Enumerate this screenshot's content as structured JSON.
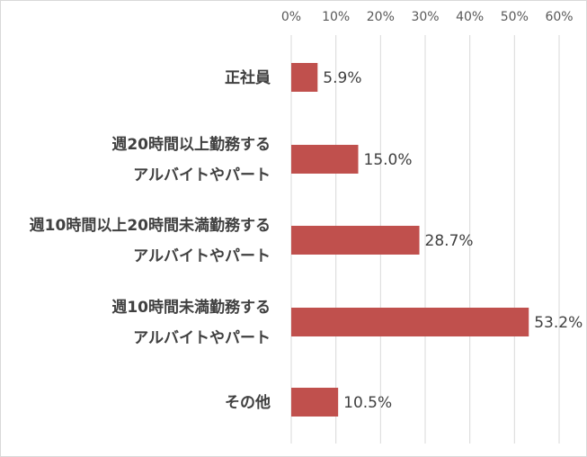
{
  "chart_data": {
    "type": "bar",
    "orientation": "horizontal",
    "categories": [
      [
        "正社員"
      ],
      [
        "週20時間以上勤務する",
        "アルバイトやパート"
      ],
      [
        "週10時間以上20時間未満勤務する",
        "アルバイトやパート"
      ],
      [
        "週10時間未満勤務する",
        "アルバイトやパート"
      ],
      [
        "その他"
      ]
    ],
    "values": [
      5.9,
      15.0,
      28.7,
      53.2,
      10.5
    ],
    "data_labels": [
      "5.9%",
      "15.0%",
      "28.7%",
      "53.2%",
      "10.5%"
    ],
    "x_ticks": [
      "0%",
      "10%",
      "20%",
      "30%",
      "40%",
      "50%",
      "60%"
    ],
    "xlim": [
      0,
      60
    ],
    "x_axis_position": "top",
    "grid": true,
    "legend": "none",
    "bar_color": "#c0504d",
    "title": "",
    "xlabel": "",
    "ylabel": ""
  }
}
